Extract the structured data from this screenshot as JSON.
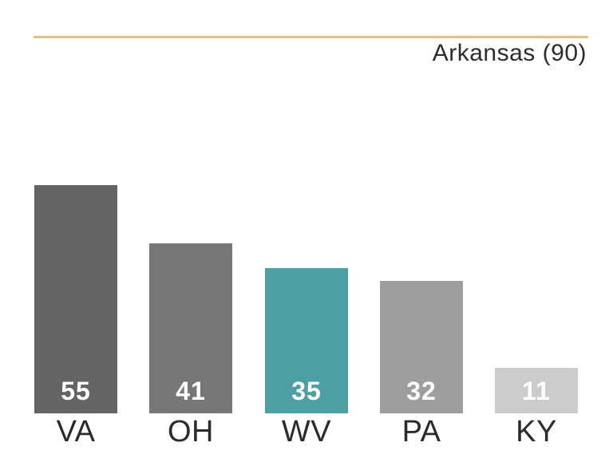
{
  "header": {
    "title": "Arkansas (90)",
    "title_color": "#2D2D2D",
    "rule_color": "#E6C17C"
  },
  "chart_data": {
    "type": "bar",
    "title": "Arkansas (90)",
    "categories": [
      "VA",
      "OH",
      "WV",
      "PA",
      "KY"
    ],
    "values": [
      55,
      41,
      35,
      32,
      11
    ],
    "bar_colors": [
      "#646464",
      "#777777",
      "#4CA0A3",
      "#9E9E9E",
      "#CCCCCC"
    ],
    "highlight_category": "WV",
    "highlight_color": "#4CA0A3",
    "value_label_color": "#FFFFFF",
    "category_label_color": "#2B2B2B",
    "xlabel": "",
    "ylabel": "",
    "ylim": [
      0,
      55
    ],
    "grid": false,
    "axes_visible": false,
    "value_labels_position": "inside-bottom",
    "legend": null
  }
}
